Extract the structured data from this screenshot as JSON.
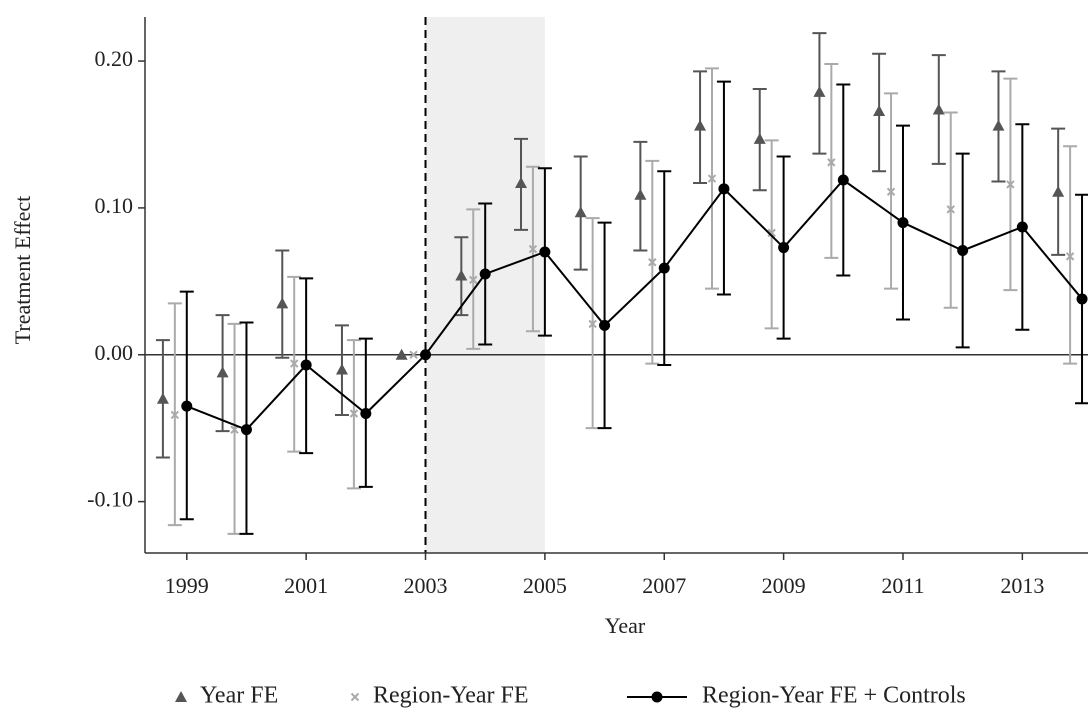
{
  "chart_data": {
    "type": "errorbar",
    "x_label": "Year",
    "y_label": "Treatment Effect",
    "x": [
      1999,
      2000,
      2001,
      2002,
      2003,
      2004,
      2005,
      2006,
      2007,
      2008,
      2009,
      2010,
      2011,
      2012,
      2013,
      2014
    ],
    "xlim": [
      1998.3,
      2014.1
    ],
    "xticks": [
      1999,
      2001,
      2003,
      2005,
      2007,
      2009,
      2011,
      2013
    ],
    "ylim": [
      -0.135,
      0.23
    ],
    "yticks": [
      {
        "value": -0.1,
        "label": "-0.10"
      },
      {
        "value": 0,
        "label": "0.00"
      },
      {
        "value": 0.1,
        "label": "0.10"
      },
      {
        "value": 0.2,
        "label": "0.20"
      }
    ],
    "reference_line": 2003,
    "shaded_span": [
      2003,
      2005
    ],
    "series": [
      {
        "name": "Year FE",
        "color": "#555555",
        "marker": "triangle",
        "values": [
          -0.03,
          -0.012,
          0.035,
          -0.01,
          0.0,
          0.054,
          0.117,
          0.097,
          0.109,
          0.156,
          0.147,
          0.179,
          0.166,
          0.167,
          0.156,
          0.111
        ],
        "lower": [
          -0.07,
          -0.052,
          -0.002,
          -0.041,
          null,
          0.027,
          0.085,
          0.058,
          0.071,
          0.117,
          0.112,
          0.137,
          0.125,
          0.13,
          0.118,
          0.068
        ],
        "upper": [
          0.01,
          0.027,
          0.071,
          0.02,
          null,
          0.08,
          0.147,
          0.135,
          0.145,
          0.193,
          0.181,
          0.219,
          0.205,
          0.204,
          0.193,
          0.154
        ]
      },
      {
        "name": "Region-Year FE",
        "color": "#aaaaaa",
        "marker": "x",
        "values": [
          -0.041,
          -0.051,
          -0.006,
          -0.04,
          0.0,
          0.051,
          0.072,
          0.021,
          0.063,
          0.12,
          0.083,
          0.131,
          0.111,
          0.099,
          0.116,
          0.067
        ],
        "lower": [
          -0.116,
          -0.122,
          -0.066,
          -0.091,
          null,
          0.004,
          0.016,
          -0.05,
          -0.006,
          0.045,
          0.018,
          0.066,
          0.045,
          0.032,
          0.044,
          -0.006
        ],
        "upper": [
          0.035,
          0.021,
          0.053,
          0.01,
          null,
          0.099,
          0.128,
          0.093,
          0.132,
          0.195,
          0.146,
          0.198,
          0.178,
          0.165,
          0.188,
          0.142
        ]
      },
      {
        "name": "Region-Year FE + Controls",
        "color": "#000000",
        "marker": "circle",
        "values": [
          -0.035,
          -0.051,
          -0.007,
          -0.04,
          0.0,
          0.055,
          0.07,
          0.02,
          0.059,
          0.113,
          0.073,
          0.119,
          0.09,
          0.071,
          0.087,
          0.038
        ],
        "lower": [
          -0.112,
          -0.122,
          -0.067,
          -0.09,
          null,
          0.007,
          0.013,
          -0.05,
          -0.007,
          0.041,
          0.011,
          0.054,
          0.024,
          0.005,
          0.017,
          -0.033
        ],
        "upper": [
          0.043,
          0.022,
          0.052,
          0.011,
          null,
          0.103,
          0.127,
          0.09,
          0.125,
          0.186,
          0.135,
          0.184,
          0.156,
          0.137,
          0.157,
          0.109
        ]
      }
    ]
  }
}
